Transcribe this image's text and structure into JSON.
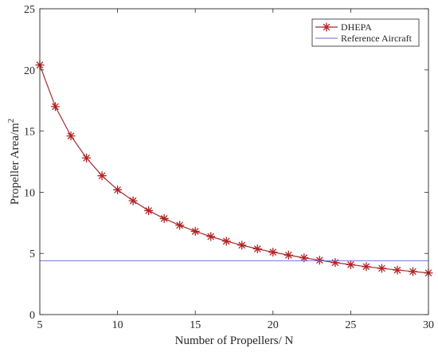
{
  "chart_data": {
    "type": "line",
    "title": "",
    "xlabel": "Number of Propellers/ N",
    "ylabel_main": "Propeller Area/m",
    "ylabel_sup": "2",
    "xlim": [
      5,
      30
    ],
    "ylim": [
      0,
      25
    ],
    "xticks": [
      5,
      10,
      15,
      20,
      25,
      30
    ],
    "yticks": [
      0,
      5,
      10,
      15,
      20,
      25
    ],
    "grid": false,
    "legend_position": "top-right",
    "series": [
      {
        "name": "DHEPA",
        "color": "#a52a2a",
        "marker_color": "#b22222",
        "marker": "asterisk",
        "x": [
          5,
          6,
          7,
          8,
          9,
          10,
          11,
          12,
          13,
          14,
          15,
          16,
          17,
          18,
          19,
          20,
          21,
          22,
          23,
          24,
          25,
          26,
          27,
          28,
          29,
          30
        ],
        "y": [
          20.4,
          17.0,
          14.6,
          12.8,
          11.35,
          10.2,
          9.3,
          8.5,
          7.85,
          7.3,
          6.8,
          6.38,
          6.0,
          5.67,
          5.37,
          5.1,
          4.86,
          4.64,
          4.44,
          4.25,
          4.08,
          3.92,
          3.78,
          3.64,
          3.52,
          3.4
        ]
      },
      {
        "name": "Reference Aircraft",
        "color": "#6a6ad4",
        "marker": "none",
        "x": [
          5,
          30
        ],
        "y": [
          4.4,
          4.4
        ]
      }
    ]
  }
}
